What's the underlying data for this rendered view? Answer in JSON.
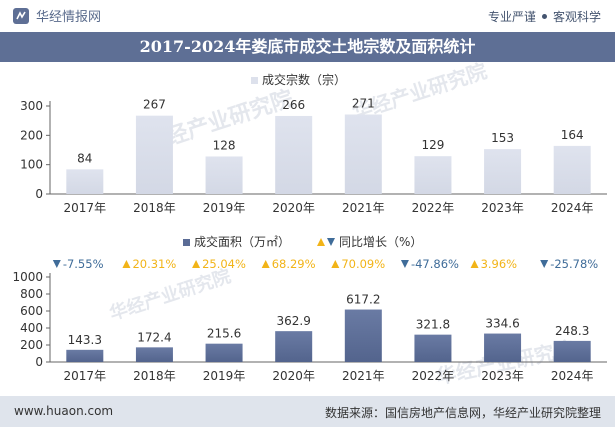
{
  "header": {
    "logo_text": "华经情报网",
    "tagline_left": "专业严谨",
    "tagline_right": "客观科学"
  },
  "title": "2017-2024年娄底市成交土地宗数及面积统计",
  "watermark": "华经产业研究院",
  "footer": {
    "website": "www.huaon.com",
    "source": "数据来源：国信房地产信息网，华经产业研究院整理"
  },
  "colors": {
    "title_bg": "#5e6f95",
    "bar_top": "#dde1ec",
    "bar_bottom": "#5b6c96",
    "up": "#f2b418",
    "down": "#3f6c99",
    "footer_bg": "#dfe4ec"
  },
  "chart_data": [
    {
      "type": "bar",
      "legend": "成交宗数（宗）",
      "categories": [
        "2017年",
        "2018年",
        "2019年",
        "2020年",
        "2021年",
        "2022年",
        "2023年",
        "2024年"
      ],
      "values": [
        84,
        267,
        128,
        266,
        271,
        129,
        153,
        164
      ],
      "yticks": [
        0,
        100,
        200,
        300
      ],
      "ylim": [
        0,
        300
      ]
    },
    {
      "type": "bar",
      "legend": "成交面积（万㎡）",
      "growth_legend": "同比增长（%）",
      "categories": [
        "2017年",
        "2018年",
        "2019年",
        "2020年",
        "2021年",
        "2022年",
        "2023年",
        "2024年"
      ],
      "values": [
        143.3,
        172.4,
        215.6,
        362.9,
        617.2,
        321.8,
        334.6,
        248.3
      ],
      "growth": [
        "-7.55%",
        "20.31%",
        "25.04%",
        "68.29%",
        "70.09%",
        "-47.86%",
        "3.96%",
        "-25.78%"
      ],
      "yticks": [
        0,
        200,
        400,
        600,
        800,
        1000
      ],
      "ylim": [
        0,
        1000
      ]
    }
  ]
}
